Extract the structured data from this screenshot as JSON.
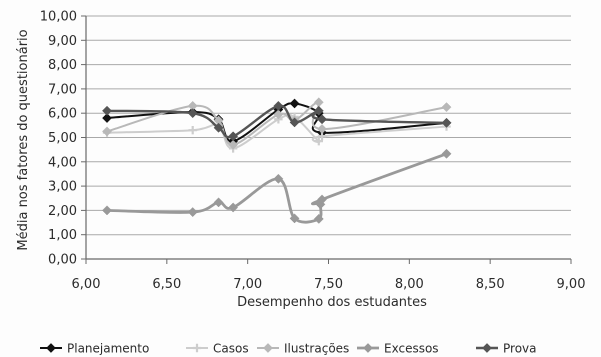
{
  "chart_data": {
    "type": "scatter",
    "line": "smooth",
    "xlabel": "Desempenho dos estudantes",
    "ylabel": "Média nos fatores do questionário",
    "xlim": [
      6,
      9
    ],
    "ylim": [
      0,
      10
    ],
    "grid": "horizontal",
    "legend": "bottom",
    "x_ticks": [
      {
        "value": 6.0,
        "label": "6,00"
      },
      {
        "value": 6.5,
        "label": "6,50"
      },
      {
        "value": 7.0,
        "label": "7,00"
      },
      {
        "value": 7.5,
        "label": "7,50"
      },
      {
        "value": 8.0,
        "label": "8,00"
      },
      {
        "value": 8.5,
        "label": "8,50"
      },
      {
        "value": 9.0,
        "label": "9,00"
      }
    ],
    "y_ticks": [
      {
        "value": 0,
        "label": "0,00"
      },
      {
        "value": 1,
        "label": "1,00"
      },
      {
        "value": 2,
        "label": "2,00"
      },
      {
        "value": 3,
        "label": "3,00"
      },
      {
        "value": 4,
        "label": "4,00"
      },
      {
        "value": 5,
        "label": "5,00"
      },
      {
        "value": 6,
        "label": "6,00"
      },
      {
        "value": 7,
        "label": "7,00"
      },
      {
        "value": 8,
        "label": "8,00"
      },
      {
        "value": 9,
        "label": "9,00"
      },
      {
        "value": 10,
        "label": "10,00"
      }
    ],
    "series": [
      {
        "name": "Planejamento",
        "color": "#111111",
        "marker": "diamond",
        "points": [
          [
            6.13,
            5.8
          ],
          [
            6.66,
            6.05
          ],
          [
            6.82,
            5.75
          ],
          [
            6.91,
            4.85
          ],
          [
            7.19,
            6.15
          ],
          [
            7.29,
            6.4
          ],
          [
            7.44,
            6.0
          ],
          [
            7.46,
            5.2
          ],
          [
            8.23,
            5.6
          ]
        ]
      },
      {
        "name": "Casos",
        "color": "#cdcdcd",
        "marker": "plus",
        "points": [
          [
            6.13,
            5.2
          ],
          [
            6.66,
            5.3
          ],
          [
            6.82,
            5.5
          ],
          [
            6.91,
            4.55
          ],
          [
            7.19,
            5.75
          ],
          [
            7.29,
            5.85
          ],
          [
            7.44,
            4.85
          ],
          [
            7.46,
            5.05
          ],
          [
            8.23,
            5.45
          ]
        ]
      },
      {
        "name": "Ilustrações",
        "color": "#b8b8b8",
        "marker": "diamond",
        "points": [
          [
            6.13,
            5.25
          ],
          [
            6.66,
            6.3
          ],
          [
            6.82,
            5.7
          ],
          [
            6.91,
            4.7
          ],
          [
            7.19,
            5.95
          ],
          [
            7.29,
            5.7
          ],
          [
            7.44,
            6.45
          ],
          [
            7.46,
            5.35
          ],
          [
            8.23,
            6.25
          ]
        ]
      },
      {
        "name": "Excessos",
        "color": "#999999",
        "marker": "diamond",
        "points": [
          [
            6.13,
            2.0
          ],
          [
            6.66,
            1.93
          ],
          [
            6.82,
            2.33
          ],
          [
            6.91,
            2.12
          ],
          [
            7.19,
            3.3
          ],
          [
            7.29,
            1.67
          ],
          [
            7.44,
            1.65
          ],
          [
            7.45,
            2.25
          ],
          [
            7.46,
            2.45
          ],
          [
            8.23,
            4.33
          ]
        ]
      },
      {
        "name": "Prova",
        "color": "#555555",
        "marker": "diamond",
        "points": [
          [
            6.13,
            6.1
          ],
          [
            6.66,
            6.0
          ],
          [
            6.82,
            5.4
          ],
          [
            6.91,
            5.05
          ],
          [
            7.19,
            6.3
          ],
          [
            7.29,
            5.62
          ],
          [
            7.44,
            6.1
          ],
          [
            7.46,
            5.75
          ],
          [
            8.23,
            5.6
          ]
        ]
      }
    ]
  }
}
